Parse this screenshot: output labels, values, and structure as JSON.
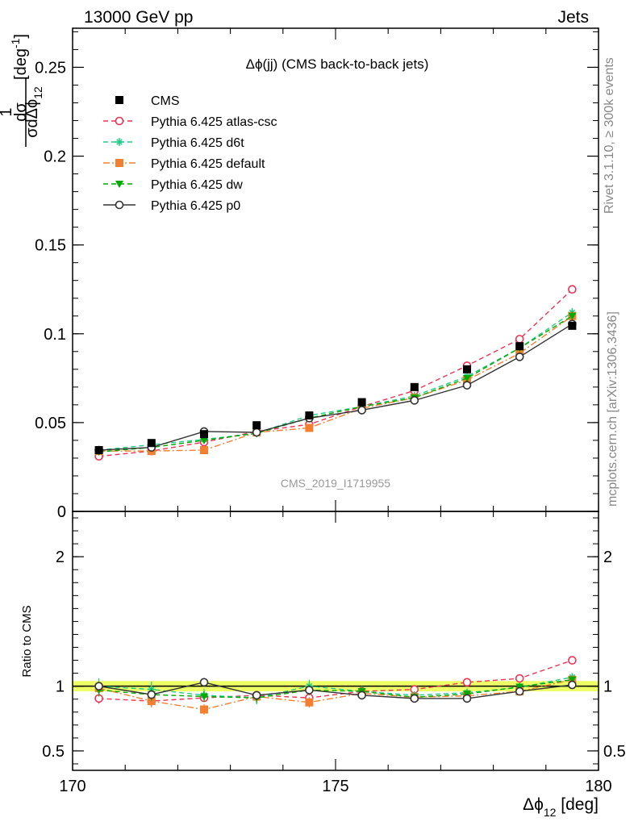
{
  "header": {
    "left": "13000 GeV pp",
    "right": "Jets"
  },
  "side_text": {
    "rivet": "Rivet 3.1.10, ≥ 300k events",
    "mcplots": "mcplots.cern.ch [arXiv:1306.3436]"
  },
  "chart_data": [
    {
      "type": "line",
      "title": "Δϕ(jj) (CMS back-to-back jets)",
      "watermark": "CMS_2019_I1719955",
      "ylabel_parts": {
        "frac_num": "1",
        "num_d": "dσ",
        "den_sigma": "σ",
        "den_rest": "dΔϕ",
        "den_sub": "12",
        "unit": "[deg",
        "unit_sup": "-1",
        "unit_close": "]"
      },
      "xlim": [
        170,
        180
      ],
      "ylim": [
        0,
        0.272
      ],
      "yticks": [
        0,
        0.05,
        0.1,
        0.15,
        0.2,
        0.25
      ],
      "ytick_labels": [
        "0",
        "0.05",
        "0.1",
        "0.15",
        "0.2",
        "0.25"
      ],
      "x": [
        170.5,
        171.5,
        172.5,
        173.5,
        174.5,
        175.5,
        176.5,
        177.5,
        178.5,
        179.5
      ],
      "series": [
        {
          "name": "CMS",
          "color": "#000000",
          "marker": "square-filled",
          "line": "none",
          "values": [
            0.0345,
            0.0385,
            0.0435,
            0.0485,
            0.054,
            0.0615,
            0.07,
            0.08,
            0.093,
            0.1045
          ],
          "errors": [
            0.0015,
            0.0015,
            0.0015,
            0.0015,
            0.0015,
            0.0015,
            0.0015,
            0.0015,
            0.0015,
            0.0015
          ]
        },
        {
          "name": "Pythia 6.425 atlas-csc",
          "color": "#ee3355",
          "marker": "circle-open",
          "line": "dashed",
          "values": [
            0.031,
            0.034,
            0.039,
            0.045,
            0.049,
            0.059,
            0.068,
            0.082,
            0.097,
            0.125
          ],
          "errors": [
            0.0007,
            0.0007,
            0.0007,
            0.0007,
            0.0007,
            0.0007,
            0.0007,
            0.0008,
            0.0009,
            0.0015
          ]
        },
        {
          "name": "Pythia 6.425 d6t",
          "color": "#22cc88",
          "marker": "star",
          "line": "dashed",
          "values": [
            0.0345,
            0.0375,
            0.0405,
            0.044,
            0.054,
            0.059,
            0.065,
            0.076,
            0.092,
            0.112
          ],
          "errors": [
            0.0015,
            0.0015,
            0.0015,
            0.0015,
            0.0015,
            0.0015,
            0.0015,
            0.0015,
            0.0015,
            0.0025
          ]
        },
        {
          "name": "Pythia 6.425 default",
          "color": "#f28030",
          "marker": "square-filled",
          "line": "dashdot",
          "values": [
            0.034,
            0.034,
            0.0345,
            0.0445,
            0.047,
            0.058,
            0.064,
            0.074,
            0.089,
            0.11
          ],
          "errors": [
            0.0015,
            0.0015,
            0.0015,
            0.0015,
            0.0015,
            0.0015,
            0.0015,
            0.0015,
            0.0015,
            0.0025
          ]
        },
        {
          "name": "Pythia 6.425 dw",
          "color": "#00aa00",
          "marker": "triangle-down",
          "line": "dashed",
          "values": [
            0.0335,
            0.036,
            0.04,
            0.044,
            0.0525,
            0.059,
            0.064,
            0.075,
            0.092,
            0.11
          ],
          "errors": [
            0.0015,
            0.0015,
            0.0015,
            0.0015,
            0.0015,
            0.0015,
            0.0015,
            0.0015,
            0.0015,
            0.0025
          ]
        },
        {
          "name": "Pythia 6.425 p0",
          "color": "#333333",
          "marker": "circle-open",
          "line": "solid",
          "values": [
            0.0345,
            0.036,
            0.045,
            0.0445,
            0.0525,
            0.057,
            0.0625,
            0.071,
            0.087,
            0.1055
          ],
          "errors": [
            0.0008,
            0.0008,
            0.0008,
            0.0008,
            0.0008,
            0.0008,
            0.0008,
            0.0008,
            0.001,
            0.0015
          ]
        }
      ]
    },
    {
      "type": "line",
      "ylabel": "Ratio to CMS",
      "xlabel_parts": {
        "main": "Δϕ",
        "sub": "12",
        "unit": " [deg]"
      },
      "xlim": [
        170,
        180
      ],
      "ylim": [
        0.35,
        2.35
      ],
      "yticks": [
        0.5,
        1,
        2
      ],
      "ytick_labels": [
        "0.5",
        "1",
        "2"
      ],
      "xticks": [
        170,
        175,
        180
      ],
      "xtick_labels": [
        "170",
        "175",
        "180"
      ],
      "band": {
        "low": 0.96,
        "high": 1.04,
        "color": "#eeff66"
      },
      "x": [
        170.5,
        171.5,
        172.5,
        173.5,
        174.5,
        175.5,
        176.5,
        177.5,
        178.5,
        179.5
      ],
      "series": [
        {
          "name": "Pythia 6.425 atlas-csc",
          "color": "#ee3355",
          "marker": "circle-open",
          "line": "dashed",
          "values": [
            0.905,
            0.885,
            0.91,
            0.93,
            0.91,
            0.96,
            0.975,
            1.03,
            1.06,
            1.2
          ],
          "errors": [
            0.04,
            0.04,
            0.03,
            0.03,
            0.03,
            0.02,
            0.02,
            0.02,
            0.02,
            0.02
          ]
        },
        {
          "name": "Pythia 6.425 d6t",
          "color": "#22cc88",
          "marker": "star",
          "line": "dashed",
          "values": [
            1.0,
            0.975,
            0.93,
            0.91,
            1.0,
            0.96,
            0.93,
            0.95,
            0.99,
            1.07
          ],
          "errors": [
            0.06,
            0.06,
            0.05,
            0.05,
            0.05,
            0.04,
            0.03,
            0.03,
            0.03,
            0.03
          ]
        },
        {
          "name": "Pythia 6.425 default",
          "color": "#f28030",
          "marker": "square-filled",
          "line": "dashdot",
          "values": [
            0.985,
            0.885,
            0.82,
            0.92,
            0.875,
            0.945,
            0.915,
            0.925,
            0.96,
            1.05
          ],
          "errors": [
            0.05,
            0.05,
            0.04,
            0.04,
            0.04,
            0.03,
            0.03,
            0.03,
            0.03,
            0.03
          ]
        },
        {
          "name": "Pythia 6.425 dw",
          "color": "#00aa00",
          "marker": "triangle-down",
          "line": "dashed",
          "values": [
            0.97,
            0.935,
            0.92,
            0.91,
            0.97,
            0.96,
            0.915,
            0.94,
            0.995,
            1.05
          ],
          "errors": [
            0.05,
            0.05,
            0.04,
            0.04,
            0.04,
            0.03,
            0.03,
            0.03,
            0.03,
            0.03
          ]
        },
        {
          "name": "Pythia 6.425 p0",
          "color": "#333333",
          "marker": "circle-open",
          "line": "solid",
          "values": [
            1.0,
            0.935,
            1.03,
            0.93,
            0.97,
            0.93,
            0.905,
            0.905,
            0.96,
            1.01
          ],
          "errors": [
            0.03,
            0.03,
            0.03,
            0.02,
            0.02,
            0.02,
            0.02,
            0.02,
            0.02,
            0.02
          ]
        }
      ]
    }
  ]
}
